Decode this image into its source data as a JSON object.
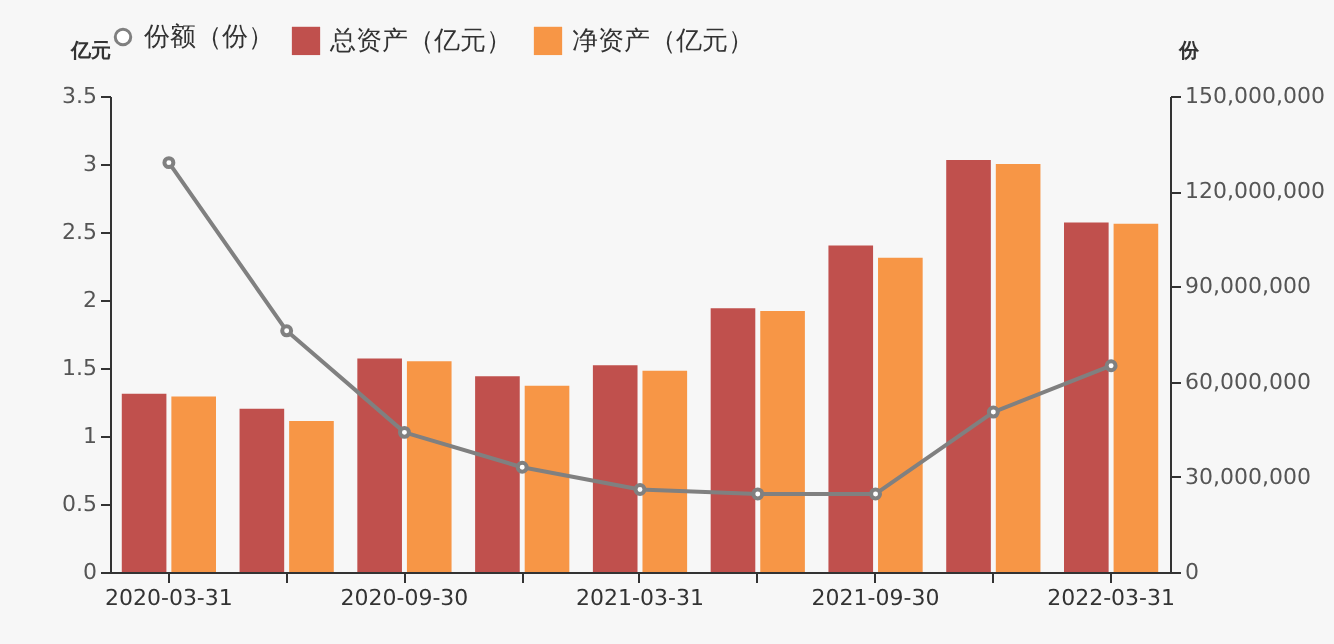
{
  "chart_data": {
    "type": "bar",
    "ylabel": "亿元",
    "y2label": "份",
    "categories": [
      "2020-03-31",
      null,
      "2020-09-30",
      null,
      "2021-03-31",
      null,
      "2021-09-30",
      null,
      "2022-03-31"
    ],
    "series": [
      {
        "name": "总资产（亿元）",
        "color": "#c0504d",
        "values": [
          1.31,
          1.2,
          1.57,
          1.44,
          1.52,
          1.94,
          2.4,
          3.03,
          2.57
        ]
      },
      {
        "name": "净资产（亿元）",
        "color": "#f79646",
        "values": [
          1.29,
          1.11,
          1.55,
          1.37,
          1.48,
          1.92,
          2.31,
          3.0,
          2.56
        ]
      },
      {
        "name": "份额（份）",
        "type": "line",
        "axis": "y2",
        "color": "#808080",
        "marker": "circle",
        "values": [
          129000000,
          76000000,
          44000000,
          33000000,
          26000000,
          24600000,
          24600000,
          50400000,
          65000000
        ]
      }
    ],
    "ylim": [
      0,
      3.5
    ],
    "yticks": [
      0,
      0.5,
      1,
      1.5,
      2,
      2.5,
      3,
      3.5
    ],
    "y2lim": [
      0,
      150000000
    ],
    "y2ticks": [
      0,
      {
        "value": 30000000,
        "label": "30,000,000"
      },
      {
        "value": 60000000,
        "label": "60,000,000"
      },
      {
        "value": 90000000,
        "label": "90,000,000"
      },
      {
        "value": 120000000,
        "label": "120,000,000"
      },
      {
        "value": 150000000,
        "label": "150,000,000"
      }
    ],
    "grid": false,
    "legend": "top"
  }
}
